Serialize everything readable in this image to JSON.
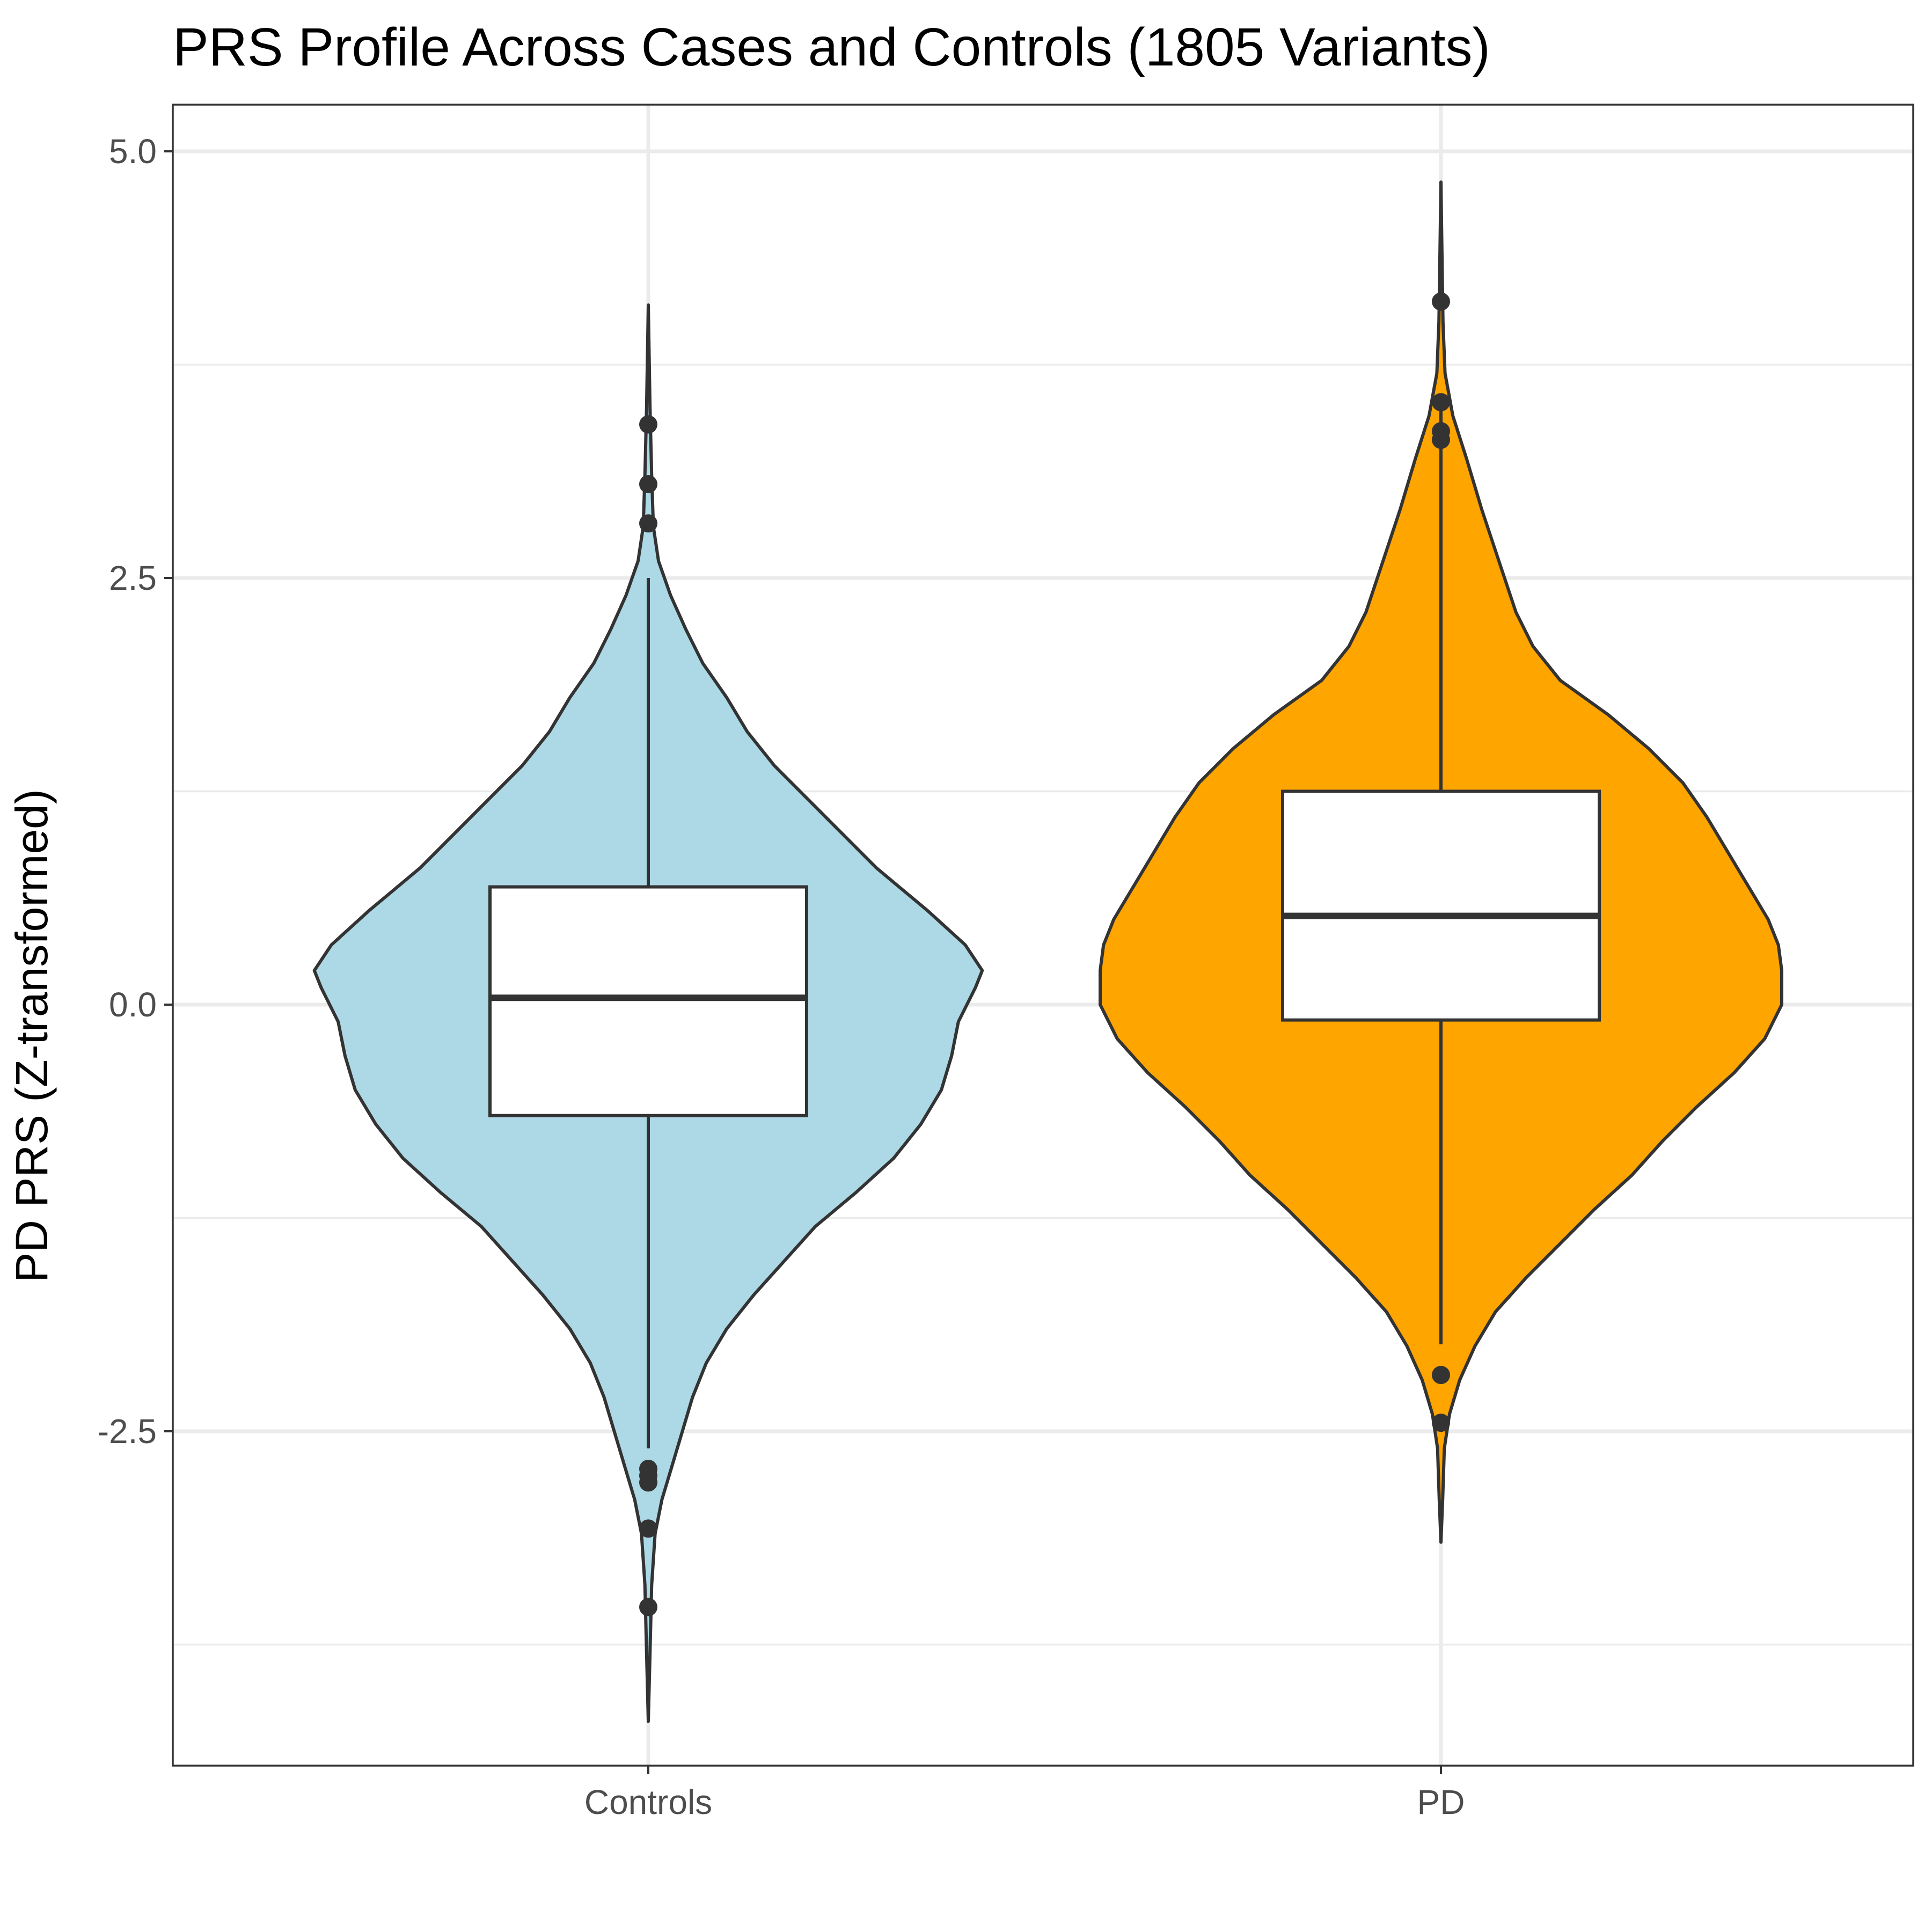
{
  "chart_data": {
    "type": "violin",
    "title": "PRS Profile Across Cases and Controls (1805 Variants)",
    "xlabel": "",
    "ylabel": "PD PRS (Z-transformed)",
    "ylim": [
      -4.5,
      5.3
    ],
    "y_ticks": [
      {
        "value": 5.0,
        "label": "5.0"
      },
      {
        "value": 2.5,
        "label": "2.5"
      },
      {
        "value": 0.0,
        "label": "0.0"
      },
      {
        "value": -2.5,
        "label": "-2.5"
      }
    ],
    "y_minor_gridlines": [
      3.75,
      1.25,
      -1.25,
      -3.75
    ],
    "grid": true,
    "legend": "none",
    "categories": [
      "Controls",
      "PD"
    ],
    "groups": [
      {
        "category": "Controls",
        "fill": "#add8e6",
        "box": {
          "q1": -0.65,
          "median": 0.04,
          "q3": 0.69,
          "whisker_low": -2.6,
          "whisker_high": 2.5
        },
        "outliers": [
          3.4,
          3.05,
          2.82,
          -2.72,
          -2.76,
          -2.8,
          -3.07,
          -3.53
        ],
        "violin_range": [
          -4.2,
          4.1
        ],
        "density": [
          [
            -4.2,
            0.0
          ],
          [
            -3.8,
            0.005
          ],
          [
            -3.4,
            0.01
          ],
          [
            -3.1,
            0.02
          ],
          [
            -2.9,
            0.04
          ],
          [
            -2.7,
            0.07
          ],
          [
            -2.5,
            0.1
          ],
          [
            -2.3,
            0.13
          ],
          [
            -2.1,
            0.17
          ],
          [
            -1.9,
            0.23
          ],
          [
            -1.7,
            0.31
          ],
          [
            -1.5,
            0.4
          ],
          [
            -1.3,
            0.49
          ],
          [
            -1.1,
            0.61
          ],
          [
            -0.9,
            0.72
          ],
          [
            -0.7,
            0.8
          ],
          [
            -0.5,
            0.86
          ],
          [
            -0.3,
            0.89
          ],
          [
            -0.1,
            0.91
          ],
          [
            0.1,
            0.96
          ],
          [
            0.2,
            0.98
          ],
          [
            0.35,
            0.93
          ],
          [
            0.55,
            0.82
          ],
          [
            0.8,
            0.67
          ],
          [
            1.0,
            0.57
          ],
          [
            1.2,
            0.47
          ],
          [
            1.4,
            0.37
          ],
          [
            1.6,
            0.29
          ],
          [
            1.8,
            0.23
          ],
          [
            2.0,
            0.16
          ],
          [
            2.2,
            0.11
          ],
          [
            2.4,
            0.065
          ],
          [
            2.6,
            0.03
          ],
          [
            2.8,
            0.015
          ],
          [
            3.1,
            0.01
          ],
          [
            3.5,
            0.005
          ],
          [
            4.1,
            0.0
          ]
        ]
      },
      {
        "category": "PD",
        "fill": "#ffa500",
        "box": {
          "q1": -0.09,
          "median": 0.52,
          "q3": 1.25,
          "whisker_low": -1.99,
          "whisker_high": 3.5
        },
        "outliers": [
          4.12,
          3.53,
          3.36,
          3.31,
          -2.17,
          -2.45
        ],
        "violin_range": [
          -3.15,
          4.82
        ],
        "density": [
          [
            -3.15,
            0.0
          ],
          [
            -2.9,
            0.005
          ],
          [
            -2.6,
            0.01
          ],
          [
            -2.4,
            0.025
          ],
          [
            -2.2,
            0.055
          ],
          [
            -2.0,
            0.1
          ],
          [
            -1.8,
            0.16
          ],
          [
            -1.6,
            0.25
          ],
          [
            -1.4,
            0.35
          ],
          [
            -1.2,
            0.45
          ],
          [
            -1.0,
            0.56
          ],
          [
            -0.8,
            0.65
          ],
          [
            -0.6,
            0.75
          ],
          [
            -0.4,
            0.86
          ],
          [
            -0.2,
            0.95
          ],
          [
            0.0,
            1.0
          ],
          [
            0.2,
            1.0
          ],
          [
            0.35,
            0.99
          ],
          [
            0.5,
            0.96
          ],
          [
            0.7,
            0.9
          ],
          [
            0.9,
            0.84
          ],
          [
            1.1,
            0.78
          ],
          [
            1.3,
            0.71
          ],
          [
            1.5,
            0.61
          ],
          [
            1.7,
            0.49
          ],
          [
            1.9,
            0.35
          ],
          [
            2.1,
            0.27
          ],
          [
            2.3,
            0.22
          ],
          [
            2.6,
            0.17
          ],
          [
            2.9,
            0.12
          ],
          [
            3.2,
            0.075
          ],
          [
            3.45,
            0.035
          ],
          [
            3.7,
            0.012
          ],
          [
            4.0,
            0.006
          ],
          [
            4.4,
            0.003
          ],
          [
            4.82,
            0.0
          ]
        ]
      }
    ]
  }
}
